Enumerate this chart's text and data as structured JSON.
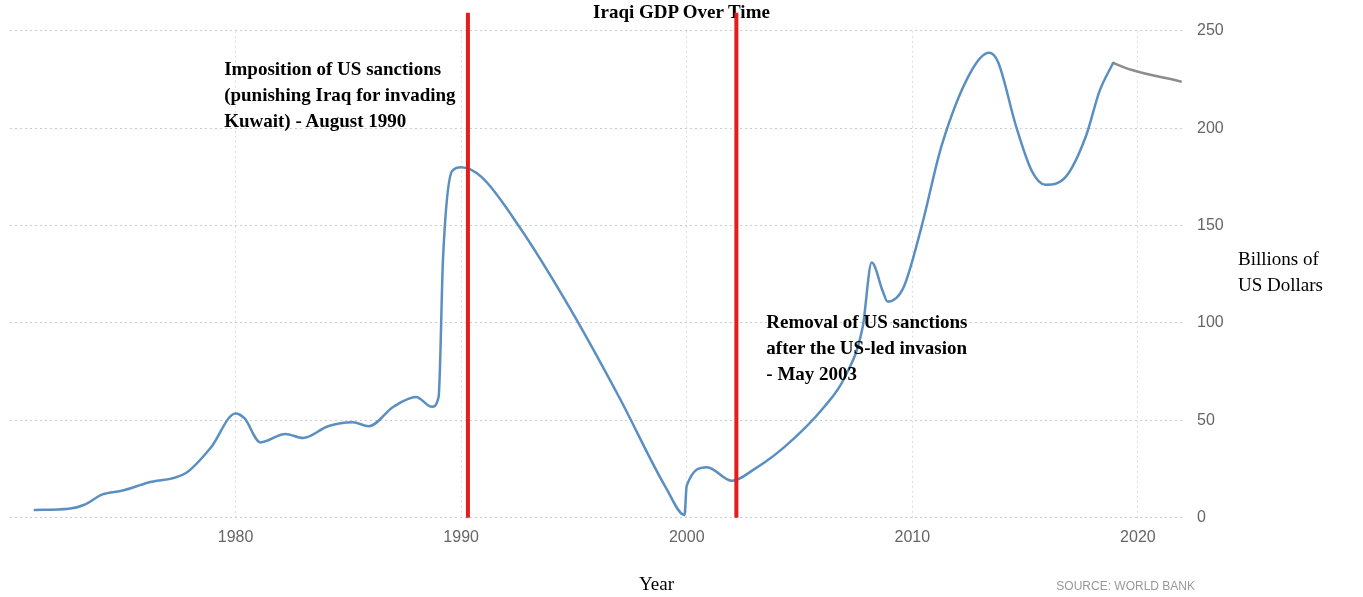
{
  "chart_data": {
    "type": "line",
    "title": "Iraqi GDP Over Time",
    "xlabel": "Year",
    "ylabel": "Billions of US Dollars",
    "series": [
      {
        "color": "#5b8fc1",
        "x": [
          1971.1,
          1972.6,
          1973.3,
          1974.1,
          1975,
          1976.1,
          1977.8,
          1978.9,
          1980,
          1980.4,
          1981.1,
          1982.2,
          1983,
          1984.1,
          1985.2,
          1985.9,
          1987,
          1988,
          1988.7,
          1989,
          1989.2,
          1989.6,
          1990,
          1990.9,
          1992.6,
          1994.8,
          1997,
          1999.1,
          1999.9,
          2000,
          2000.9,
          2002,
          2003,
          2004.3,
          2006.1,
          2007,
          2007.8,
          2008.2,
          2008.7,
          2008.9,
          2009.6,
          2010.4,
          2011.3,
          2012.6,
          2013.4,
          2013.8,
          2014.6,
          2015.3,
          2015.9,
          2016.8,
          2017.7,
          2018.3,
          2018.9
        ],
        "values": [
          4,
          4.6,
          6.7,
          12,
          14,
          18,
          23,
          36,
          53.6,
          51,
          38.7,
          43,
          41,
          47,
          49,
          47,
          57,
          62,
          57,
          62,
          134,
          178,
          180,
          175,
          149,
          108,
          62,
          15,
          1.5,
          16.5,
          26,
          19,
          25,
          36,
          57,
          72,
          98,
          131,
          116,
          111,
          118,
          149,
          191,
          229,
          238.7,
          234,
          201,
          178,
          171,
          175,
          196,
          219,
          233.5
        ]
      },
      {
        "color": "#8c8c8c",
        "x": [
          2018.9,
          2019.7,
          2021.9
        ],
        "values": [
          233.5,
          230,
          224
        ]
      }
    ],
    "xlim": [
      1970,
      2022
    ],
    "xticks": [
      1980,
      1990,
      2000,
      2010,
      2020
    ],
    "ylim": [
      0,
      250
    ],
    "yticks": [
      0,
      50,
      100,
      150,
      200,
      250
    ],
    "grid": true,
    "legend": false,
    "marker": "none",
    "line_style": "solid",
    "ref_lines": [
      {
        "axis": "x",
        "value": 1990.3,
        "label": "Imposition of US sanctions\n(punishing Iraq for invading\nKuwait) - August 1990",
        "color": "#e31c1c"
      },
      {
        "axis": "x",
        "value": 2002.2,
        "label": "Removal of US sanctions\nafter the US-led invasion\n- May 2003",
        "color": "#e31c1c"
      }
    ],
    "annotations": [
      "SOURCE: WORLD BANK"
    ]
  }
}
